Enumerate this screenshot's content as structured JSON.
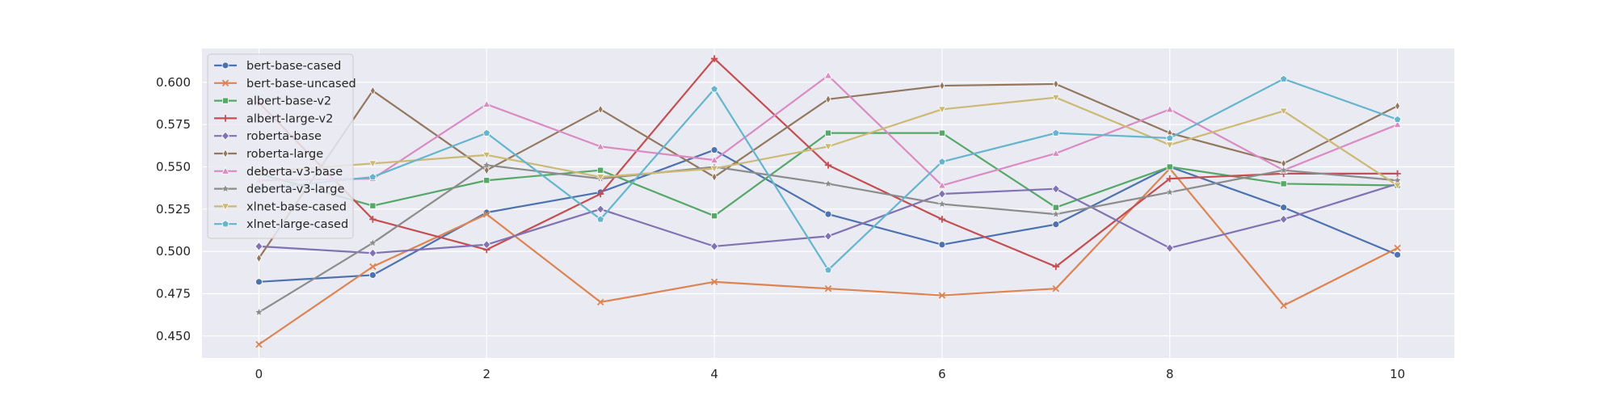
{
  "chart_data": {
    "type": "line",
    "title": "",
    "xlabel": "",
    "ylabel": "",
    "x": [
      0,
      1,
      2,
      3,
      4,
      5,
      6,
      7,
      8,
      9,
      10
    ],
    "xlim": [
      -0.5,
      10.5
    ],
    "ylim": [
      0.437,
      0.62
    ],
    "xticks": [
      0,
      2,
      4,
      6,
      8,
      10
    ],
    "xtick_labels": [
      "0",
      "2",
      "4",
      "6",
      "8",
      "10"
    ],
    "yticks": [
      0.45,
      0.475,
      0.5,
      0.525,
      0.55,
      0.575,
      0.6
    ],
    "ytick_labels": [
      "0.450",
      "0.475",
      "0.500",
      "0.525",
      "0.550",
      "0.575",
      "0.600"
    ],
    "grid": true,
    "legend_position": "upper-left",
    "background_color": "#eaeaf2",
    "grid_color": "#ffffff",
    "series": [
      {
        "name": "bert-base-cased",
        "color": "#4c72b0",
        "marker": "circle",
        "values": [
          0.482,
          0.486,
          0.523,
          0.535,
          0.56,
          0.522,
          0.504,
          0.516,
          0.55,
          0.526,
          0.498
        ]
      },
      {
        "name": "bert-base-uncased",
        "color": "#dd8452",
        "marker": "x",
        "values": [
          0.445,
          0.491,
          0.522,
          0.47,
          0.482,
          0.478,
          0.474,
          0.478,
          0.549,
          0.468,
          0.502
        ]
      },
      {
        "name": "albert-base-v2",
        "color": "#55a868",
        "marker": "square",
        "values": [
          0.546,
          0.527,
          0.542,
          0.548,
          0.521,
          0.57,
          0.57,
          0.526,
          0.55,
          0.54,
          0.539
        ]
      },
      {
        "name": "albert-large-v2",
        "color": "#c44e52",
        "marker": "plus",
        "values": [
          0.588,
          0.519,
          0.501,
          0.534,
          0.614,
          0.551,
          0.519,
          0.491,
          0.543,
          0.546,
          0.546
        ]
      },
      {
        "name": "roberta-base",
        "color": "#8172b3",
        "marker": "diamond",
        "values": [
          0.503,
          0.499,
          0.504,
          0.525,
          0.503,
          0.509,
          0.534,
          0.537,
          0.502,
          0.519,
          0.54
        ]
      },
      {
        "name": "roberta-large",
        "color": "#937860",
        "marker": "thin-diamond",
        "values": [
          0.496,
          0.595,
          0.548,
          0.584,
          0.544,
          0.59,
          0.598,
          0.599,
          0.57,
          0.552,
          0.586
        ]
      },
      {
        "name": "deberta-v3-base",
        "color": "#da8bc3",
        "marker": "triangle-up",
        "values": [
          0.542,
          0.543,
          0.587,
          0.562,
          0.554,
          0.604,
          0.539,
          0.558,
          0.584,
          0.548,
          0.575
        ]
      },
      {
        "name": "deberta-v3-large",
        "color": "#8c8c8c",
        "marker": "star",
        "values": [
          0.464,
          0.505,
          0.551,
          0.543,
          0.55,
          0.54,
          0.528,
          0.522,
          0.535,
          0.548,
          0.542
        ]
      },
      {
        "name": "xlnet-base-cased",
        "color": "#ccb974",
        "marker": "triangle-down",
        "values": [
          0.547,
          0.552,
          0.557,
          0.544,
          0.549,
          0.562,
          0.584,
          0.591,
          0.563,
          0.583,
          0.539
        ]
      },
      {
        "name": "xlnet-large-cased",
        "color": "#64b5cd",
        "marker": "pentagon",
        "values": [
          0.537,
          0.544,
          0.57,
          0.519,
          0.596,
          0.489,
          0.553,
          0.57,
          0.567,
          0.602,
          0.578
        ]
      }
    ]
  }
}
